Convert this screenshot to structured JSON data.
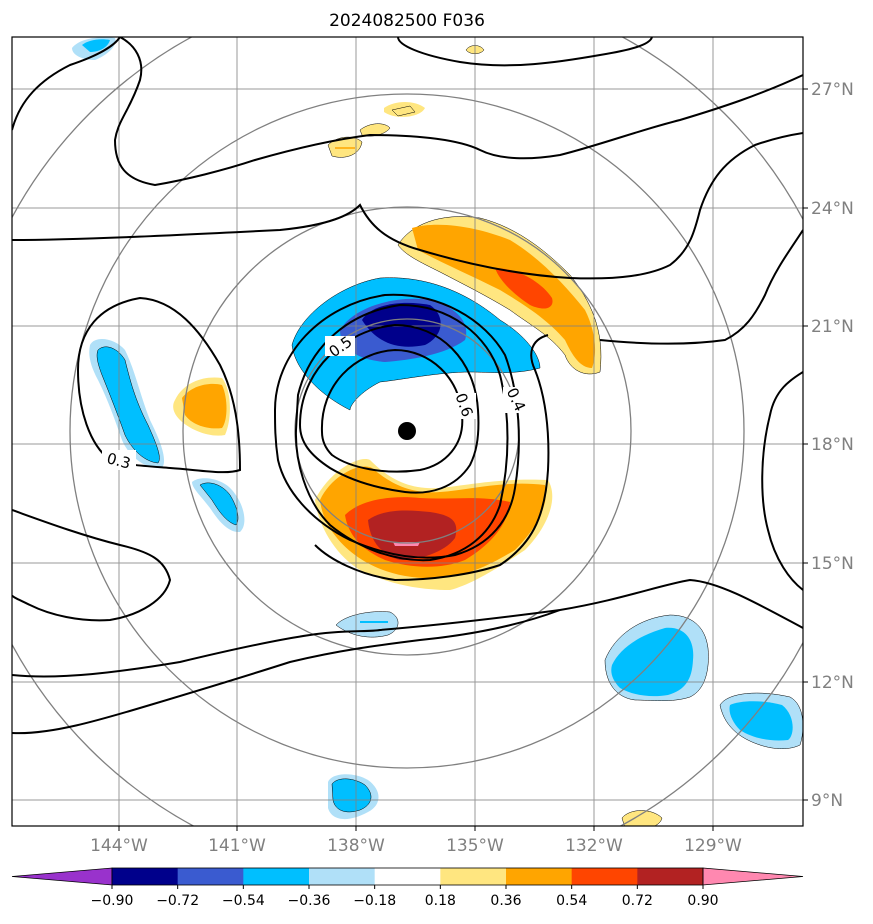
{
  "title": "2024082500 F036",
  "longitude_labels": [
    "144°W",
    "141°W",
    "138°W",
    "135°W",
    "132°W",
    "129°W"
  ],
  "latitude_labels": [
    "27°N",
    "24°N",
    "21°N",
    "18°N",
    "15°N",
    "12°N",
    "9°N"
  ],
  "contour_labels": [
    "0.5",
    "0.6",
    "0.4",
    "0.3"
  ],
  "colorbar": {
    "labels": [
      "−0.90",
      "−0.72",
      "−0.54",
      "−0.36",
      "−0.18",
      "0.18",
      "0.36",
      "0.54",
      "0.72",
      "0.90"
    ],
    "colors": [
      "#9932cc",
      "#00008b",
      "#3a5bd0",
      "#00bfff",
      "#b0e0f8",
      "#ffffff",
      "#ffe680",
      "#ffa500",
      "#ff4500",
      "#b22222",
      "#ff88b0"
    ]
  },
  "colors": {
    "neg_strong": "#00008b",
    "neg_mid": "#3a5bd0",
    "neg_light": "#00bfff",
    "neg_pale": "#b0e0f8",
    "pos_pale": "#ffe680",
    "pos_light": "#ffa500",
    "pos_mid": "#ff4500",
    "pos_strong": "#b22222",
    "pos_max": "#ff88b0",
    "grid": "#808080",
    "contour": "#000000"
  }
}
